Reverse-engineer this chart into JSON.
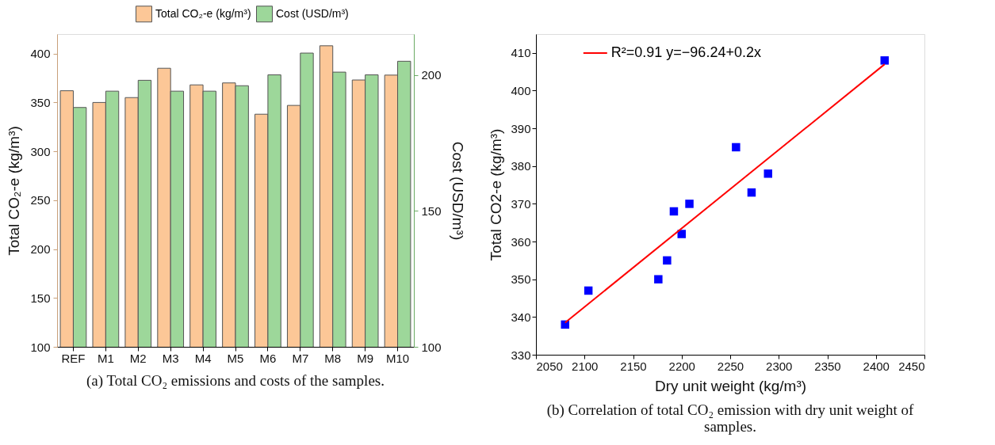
{
  "chart_data": [
    {
      "type": "bar",
      "categories": [
        "REF",
        "M1",
        "M2",
        "M3",
        "M4",
        "M5",
        "M6",
        "M7",
        "M8",
        "M9",
        "M10"
      ],
      "series": [
        {
          "name": "Total CO₂-e (kg/m³)",
          "color": "#fcc797",
          "values": [
            362,
            350,
            355,
            385,
            368,
            370,
            338,
            347,
            408,
            373,
            378
          ]
        },
        {
          "name": "Cost (USD/m³)",
          "color": "#9dd79a",
          "axis": "y2",
          "values": [
            188,
            194,
            198,
            194,
            194,
            196,
            200,
            208,
            201,
            200,
            205
          ]
        }
      ],
      "ylabel": "Total CO₂-e (kg/m³)",
      "y2label": "Cost (USD/m³)",
      "ylim": [
        100,
        420
      ],
      "yticks": [
        100,
        150,
        200,
        250,
        300,
        350,
        400
      ],
      "y2lim": [
        100,
        215
      ],
      "y2ticks": [
        100,
        150,
        200
      ],
      "legend": "top",
      "grid": false,
      "annotations": [
        "(a) Total CO₂ emissions and costs of the samples."
      ]
    },
    {
      "type": "scatter",
      "series": [
        {
          "type": "scatter",
          "color": "#0000ff",
          "marker": "square",
          "x": [
            2080,
            2104,
            2176,
            2185,
            2200,
            2192,
            2208,
            2256,
            2272,
            2289,
            2409
          ],
          "values": [
            338,
            347,
            350,
            355,
            362,
            368,
            370,
            385,
            373,
            378,
            408
          ]
        },
        {
          "type": "line",
          "name": "R²=0.91 y=−96.24+0.2x",
          "color": "#ff0000",
          "line_style": "solid",
          "x": [
            2080,
            2409
          ],
          "values": [
            338.5,
            407
          ]
        }
      ],
      "xlabel": "Dry unit weight (kg/m³)",
      "ylabel": "Total CO2-e (kg/m³)",
      "xlim": [
        2050,
        2450
      ],
      "xticks": [
        2050,
        2100,
        2150,
        2200,
        2250,
        2300,
        2350,
        2400,
        2450
      ],
      "ylim": [
        330,
        415
      ],
      "yticks": [
        330,
        340,
        350,
        360,
        370,
        380,
        390,
        400,
        410
      ],
      "legend": "top",
      "grid": false,
      "annotations": [
        "(b) Correlation of total CO₂ emission with dry unit weight of samples."
      ]
    }
  ]
}
